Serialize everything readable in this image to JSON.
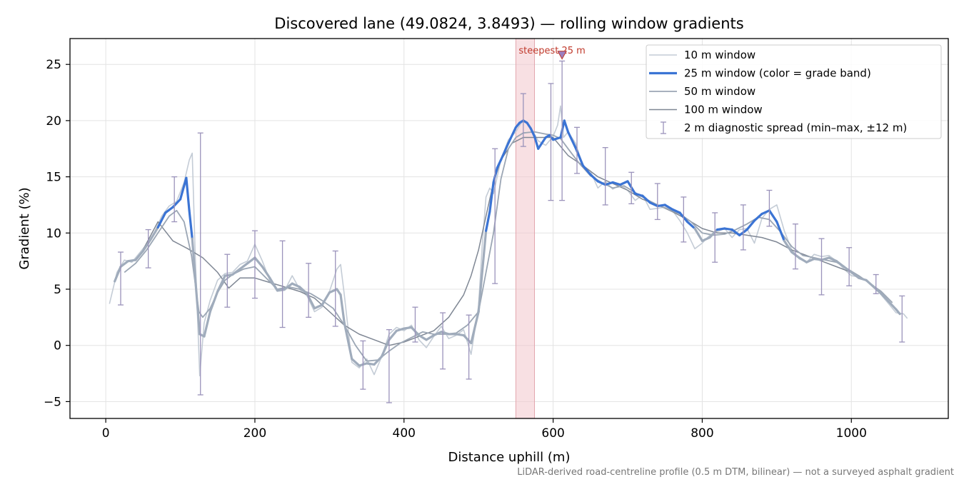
{
  "chart_data": {
    "type": "line",
    "title": "Discovered lane (49.0824, 3.8493) — rolling window gradients",
    "xlabel": "Distance uphill (m)",
    "ylabel": "Gradient (%)",
    "xlim": [
      -48,
      1130
    ],
    "ylim": [
      -6.5,
      27.3
    ],
    "x_ticks": [
      0,
      200,
      400,
      600,
      800,
      1000
    ],
    "y_ticks": [
      -5,
      0,
      5,
      10,
      15,
      20,
      25
    ],
    "grid": true,
    "legend_position": "top-right",
    "highlight_band": {
      "x0": 550,
      "x1": 575,
      "label": "steepest 25 m"
    },
    "peak_marker": {
      "x": 612,
      "y": 25.8
    },
    "footer_note": "LiDAR-derived road-centreline profile (0.5 m DTM, bilinear) — not a surveyed asphalt gradient",
    "series": [
      {
        "name": "10 m window",
        "color": "#c4ccd6",
        "x": [
          5,
          15,
          25,
          35,
          45,
          55,
          65,
          75,
          85,
          95,
          105,
          112,
          116,
          120,
          126,
          132,
          140,
          150,
          160,
          170,
          180,
          190,
          200,
          210,
          220,
          230,
          240,
          250,
          260,
          270,
          280,
          290,
          300,
          310,
          315,
          320,
          330,
          340,
          350,
          360,
          370,
          380,
          390,
          400,
          410,
          420,
          430,
          440,
          450,
          460,
          470,
          480,
          490,
          500,
          505,
          510,
          515,
          520,
          530,
          540,
          550,
          560,
          570,
          580,
          590,
          600,
          606,
          610,
          614,
          620,
          630,
          640,
          650,
          660,
          670,
          680,
          690,
          700,
          710,
          720,
          730,
          740,
          750,
          760,
          770,
          780,
          790,
          800,
          810,
          820,
          830,
          840,
          850,
          860,
          870,
          880,
          890,
          900,
          910,
          920,
          930,
          940,
          950,
          960,
          970,
          980,
          990,
          1000,
          1010,
          1020,
          1030,
          1040,
          1050,
          1060,
          1070,
          1075
        ],
        "y": [
          3.7,
          6.5,
          7.6,
          7.4,
          8.2,
          9.0,
          10.0,
          11.5,
          12.4,
          12.8,
          14.5,
          16.5,
          17.1,
          8.0,
          -2.7,
          2.0,
          4.0,
          5.8,
          6.4,
          6.5,
          7.2,
          7.5,
          9.0,
          7.5,
          5.8,
          4.8,
          4.9,
          6.2,
          5.0,
          4.4,
          3.0,
          3.4,
          4.8,
          6.8,
          7.2,
          4.5,
          -1.5,
          -2.0,
          -1.2,
          -2.6,
          -1.0,
          1.0,
          1.6,
          1.3,
          1.8,
          0.5,
          -0.2,
          0.8,
          1.7,
          0.6,
          0.9,
          1.4,
          -0.8,
          3.5,
          9.0,
          13.2,
          14.0,
          13.5,
          16.5,
          18.3,
          19.0,
          20.1,
          19.4,
          18.2,
          17.8,
          18.6,
          19.6,
          21.3,
          18.5,
          19.0,
          18.0,
          16.0,
          15.5,
          14.0,
          14.6,
          13.9,
          14.3,
          13.8,
          12.9,
          13.4,
          12.1,
          12.2,
          12.3,
          12.0,
          11.1,
          10.0,
          8.6,
          9.1,
          9.8,
          10.1,
          10.4,
          9.6,
          10.3,
          10.4,
          9.1,
          11.3,
          12.1,
          12.5,
          10.2,
          8.5,
          7.7,
          7.4,
          8.1,
          7.9,
          8.0,
          7.5,
          6.8,
          6.2,
          6.1,
          5.8,
          5.3,
          4.5,
          3.7,
          2.9,
          2.8,
          2.4
        ]
      },
      {
        "name": "25 m window (color = grade band)",
        "color": "#4f7fd0",
        "grade_band_colors": {
          "below_10": "#a0acbc",
          "from_10_to_15": "#3b74d4",
          "above_20": "#e28a1e"
        },
        "x": [
          12,
          20,
          30,
          40,
          50,
          60,
          70,
          80,
          90,
          100,
          108,
          112,
          116,
          120,
          126,
          132,
          140,
          150,
          160,
          170,
          180,
          190,
          200,
          210,
          220,
          230,
          240,
          250,
          260,
          270,
          280,
          290,
          300,
          310,
          315,
          320,
          330,
          340,
          350,
          360,
          370,
          380,
          390,
          400,
          410,
          420,
          430,
          440,
          450,
          460,
          470,
          480,
          490,
          500,
          510,
          515,
          520,
          525,
          530,
          540,
          550,
          555,
          560,
          565,
          570,
          575,
          580,
          590,
          595,
          600,
          610,
          615,
          620,
          630,
          640,
          650,
          660,
          670,
          680,
          690,
          700,
          710,
          720,
          730,
          740,
          750,
          760,
          770,
          780,
          790,
          800,
          810,
          820,
          830,
          840,
          850,
          860,
          870,
          880,
          890,
          900,
          910,
          920,
          930,
          940,
          950,
          960,
          970,
          980,
          990,
          1000,
          1010,
          1020,
          1030,
          1040,
          1050,
          1060,
          1065
        ],
        "y": [
          5.7,
          7.0,
          7.5,
          7.6,
          8.4,
          9.4,
          10.5,
          11.8,
          12.3,
          13.0,
          14.9,
          12.0,
          9.5,
          6.0,
          1.0,
          0.8,
          3.0,
          4.8,
          6.2,
          6.3,
          6.8,
          7.3,
          7.8,
          7.0,
          6.0,
          4.9,
          5.0,
          5.5,
          5.2,
          4.6,
          3.3,
          3.6,
          4.7,
          5.0,
          4.5,
          2.0,
          -1.2,
          -1.8,
          -1.6,
          -1.7,
          -1.0,
          0.5,
          1.3,
          1.5,
          1.6,
          0.9,
          0.5,
          0.9,
          1.2,
          1.0,
          1.0,
          0.9,
          0.2,
          3.0,
          10.2,
          11.9,
          14.5,
          15.8,
          16.5,
          18.0,
          19.4,
          19.8,
          20.0,
          19.8,
          19.3,
          18.6,
          17.5,
          18.5,
          18.7,
          18.3,
          18.5,
          20.0,
          19.0,
          17.6,
          16.0,
          15.2,
          14.6,
          14.3,
          14.5,
          14.3,
          14.6,
          13.5,
          13.3,
          12.7,
          12.4,
          12.5,
          12.1,
          11.8,
          11.0,
          10.4,
          9.3,
          9.6,
          10.3,
          10.4,
          10.3,
          9.8,
          10.3,
          11.1,
          11.7,
          12.0,
          11.0,
          9.3,
          8.3,
          7.8,
          7.4,
          7.7,
          7.6,
          7.8,
          7.5,
          7.0,
          6.5,
          6.0,
          5.8,
          5.2,
          4.6,
          3.9,
          3.2,
          2.8
        ]
      },
      {
        "name": "50 m window",
        "color": "#9ba6b4",
        "x": [
          25,
          40,
          55,
          70,
          85,
          95,
          105,
          115,
          125,
          130,
          140,
          150,
          160,
          170,
          185,
          200,
          215,
          230,
          245,
          260,
          275,
          290,
          305,
          320,
          335,
          350,
          365,
          380,
          395,
          410,
          425,
          440,
          455,
          470,
          485,
          500,
          510,
          520,
          530,
          540,
          550,
          560,
          575,
          590,
          600,
          610,
          620,
          635,
          650,
          665,
          680,
          695,
          710,
          725,
          740,
          755,
          770,
          785,
          800,
          815,
          830,
          845,
          860,
          875,
          890,
          905,
          920,
          935,
          950,
          965,
          980,
          995,
          1010,
          1025,
          1040,
          1055
        ],
        "y": [
          6.5,
          7.3,
          8.5,
          10.0,
          11.5,
          12.0,
          11.0,
          8.0,
          3.0,
          2.5,
          3.3,
          4.7,
          5.8,
          6.3,
          6.8,
          7.0,
          6.0,
          5.0,
          5.2,
          5.0,
          4.6,
          4.0,
          3.3,
          1.8,
          0.0,
          -1.4,
          -1.3,
          -0.5,
          0.2,
          0.7,
          1.2,
          1.0,
          1.0,
          1.1,
          1.8,
          3.0,
          6.5,
          10.0,
          14.8,
          17.5,
          18.5,
          18.9,
          19.0,
          18.8,
          18.7,
          18.4,
          17.5,
          16.2,
          15.1,
          14.5,
          14.0,
          14.2,
          13.6,
          13.0,
          12.5,
          12.1,
          11.7,
          11.0,
          10.0,
          9.8,
          9.9,
          10.3,
          10.8,
          11.4,
          11.2,
          10.1,
          8.8,
          8.0,
          7.8,
          7.6,
          7.4,
          6.8,
          6.2,
          5.5,
          4.8,
          3.8
        ]
      },
      {
        "name": "100 m window",
        "color": "#7f8794",
        "x": [
          50,
          70,
          90,
          110,
          130,
          150,
          165,
          180,
          200,
          220,
          240,
          260,
          280,
          300,
          320,
          340,
          360,
          380,
          400,
          420,
          440,
          460,
          480,
          490,
          500,
          510,
          520,
          530,
          545,
          560,
          580,
          600,
          620,
          640,
          660,
          680,
          700,
          720,
          740,
          760,
          780,
          800,
          820,
          840,
          860,
          880,
          900,
          920,
          940,
          960,
          980,
          1000,
          1010
        ],
        "y": [
          8.5,
          11.0,
          9.3,
          8.6,
          7.8,
          6.5,
          5.1,
          6.0,
          6.0,
          5.6,
          5.2,
          4.8,
          4.2,
          3.0,
          1.8,
          1.0,
          0.5,
          0.0,
          0.3,
          0.8,
          1.3,
          2.5,
          4.5,
          6.2,
          8.5,
          11.5,
          14.5,
          16.5,
          18.0,
          18.5,
          18.5,
          18.5,
          16.9,
          16.0,
          15.0,
          14.4,
          13.8,
          13.0,
          12.5,
          11.9,
          11.2,
          10.4,
          10.0,
          10.0,
          9.8,
          9.6,
          9.2,
          8.5,
          8.0,
          7.5,
          7.0,
          6.5,
          6.0
        ]
      },
      {
        "name": "2 m diagnostic spread (min–max, ±12 m)",
        "color": "#9b93bb",
        "x": [
          20,
          57,
          92,
          127,
          163,
          200,
          237,
          272,
          308,
          345,
          380,
          415,
          452,
          487,
          522,
          560,
          597,
          612,
          632,
          670,
          705,
          740,
          775,
          817,
          855,
          890,
          925,
          960,
          997,
          1033,
          1068
        ],
        "y": [
          5.9,
          8.6,
          12.9,
          7.3,
          5.8,
          7.3,
          5.5,
          4.7,
          5.0,
          -1.9,
          -1.7,
          0.8,
          0.5,
          -0.1,
          11.3,
          19.8,
          18.3,
          19.2,
          16.8,
          15.1,
          14.6,
          12.5,
          11.2,
          9.6,
          10.8,
          12.0,
          8.3,
          7.1,
          6.5,
          5.5,
          2.4
        ],
        "y_min": [
          3.6,
          6.9,
          11.0,
          -4.4,
          3.4,
          4.2,
          1.6,
          2.5,
          1.7,
          -3.9,
          -5.1,
          0.3,
          -2.1,
          -3.0,
          5.5,
          17.7,
          12.9,
          12.9,
          15.3,
          12.5,
          12.6,
          11.2,
          9.2,
          7.4,
          8.5,
          10.6,
          6.8,
          4.5,
          5.3,
          4.6,
          0.3
        ],
        "y_max": [
          8.3,
          10.3,
          15.0,
          18.9,
          8.1,
          10.2,
          9.3,
          7.3,
          8.4,
          0.4,
          1.4,
          3.4,
          2.9,
          2.7,
          17.5,
          22.4,
          23.3,
          25.3,
          19.4,
          17.6,
          15.4,
          14.4,
          13.2,
          11.8,
          12.5,
          13.8,
          10.8,
          9.5,
          8.7,
          6.3,
          4.4
        ]
      }
    ]
  }
}
